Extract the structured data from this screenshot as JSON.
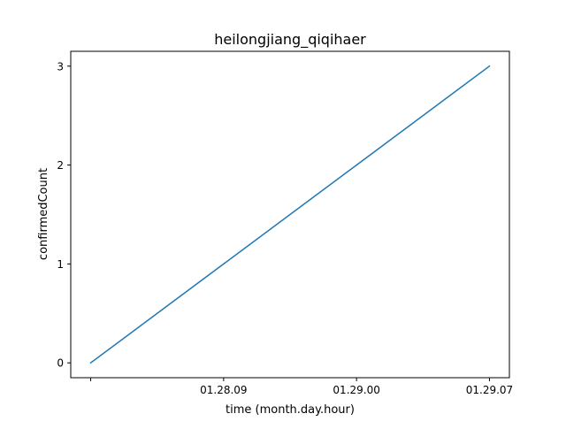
{
  "chart_data": {
    "type": "line",
    "title": "heilongjiang_qiqihaer",
    "xlabel": "time (month.day.hour)",
    "ylabel": "confirmedCount",
    "x_ticks": [
      {
        "x": 0,
        "label": ""
      },
      {
        "x": 1,
        "label": "01.28.09"
      },
      {
        "x": 2,
        "label": "01.29.00"
      },
      {
        "x": 3,
        "label": "01.29.07"
      }
    ],
    "y_ticks": [
      0,
      1,
      2,
      3
    ],
    "xlim": [
      -0.15,
      3.15
    ],
    "ylim": [
      -0.15,
      3.15
    ],
    "grid": false,
    "series": [
      {
        "x": [
          0,
          1,
          2,
          3
        ],
        "values": [
          0,
          1,
          2,
          3
        ],
        "color": "#1f77b4"
      }
    ]
  }
}
